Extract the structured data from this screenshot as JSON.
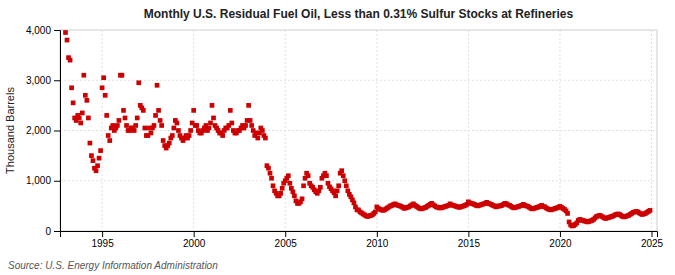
{
  "chart_data": {
    "type": "scatter",
    "title": "Monthly U.S. Residual Fuel Oil, Less than 0.31% Sulfur Stocks at Refineries",
    "ylabel": "Thousand Barrels",
    "annotations": [
      "Source: U.S. Energy Information Administration"
    ],
    "color": "#cc0000",
    "marker": "square",
    "grid": true,
    "xlim": [
      1992.7,
      2025.3
    ],
    "xticks": [
      1995,
      2000,
      2005,
      2010,
      2015,
      2020,
      2025
    ],
    "ylim": [
      0,
      4000
    ],
    "yticks": [
      0,
      {
        "value": 1000,
        "label": "1,000"
      },
      {
        "value": 2000,
        "label": "2,000"
      },
      {
        "value": 3000,
        "label": "3,000"
      },
      {
        "value": 4000,
        "label": "4,000"
      }
    ],
    "x": [
      1993.0,
      1993.083,
      1993.167,
      1993.25,
      1993.333,
      1993.417,
      1993.5,
      1993.583,
      1993.667,
      1993.75,
      1993.833,
      1993.917,
      1994.0,
      1994.083,
      1994.167,
      1994.25,
      1994.333,
      1994.417,
      1994.5,
      1994.583,
      1994.667,
      1994.75,
      1994.833,
      1994.917,
      1995.0,
      1995.083,
      1995.167,
      1995.25,
      1995.333,
      1995.417,
      1995.5,
      1995.583,
      1995.667,
      1995.75,
      1995.833,
      1995.917,
      1996.0,
      1996.083,
      1996.167,
      1996.25,
      1996.333,
      1996.417,
      1996.5,
      1996.583,
      1996.667,
      1996.75,
      1996.833,
      1996.917,
      1997.0,
      1997.083,
      1997.167,
      1997.25,
      1997.333,
      1997.417,
      1997.5,
      1997.583,
      1997.667,
      1997.75,
      1997.833,
      1997.917,
      1998.0,
      1998.083,
      1998.167,
      1998.25,
      1998.333,
      1998.417,
      1998.5,
      1998.583,
      1998.667,
      1998.75,
      1998.833,
      1998.917,
      1999.0,
      1999.083,
      1999.167,
      1999.25,
      1999.333,
      1999.417,
      1999.5,
      1999.583,
      1999.667,
      1999.75,
      1999.833,
      1999.917,
      2000.0,
      2000.083,
      2000.167,
      2000.25,
      2000.333,
      2000.417,
      2000.5,
      2000.583,
      2000.667,
      2000.75,
      2000.833,
      2000.917,
      2001.0,
      2001.083,
      2001.167,
      2001.25,
      2001.333,
      2001.417,
      2001.5,
      2001.583,
      2001.667,
      2001.75,
      2001.833,
      2001.917,
      2002.0,
      2002.083,
      2002.167,
      2002.25,
      2002.333,
      2002.417,
      2002.5,
      2002.583,
      2002.667,
      2002.75,
      2002.833,
      2002.917,
      2003.0,
      2003.083,
      2003.167,
      2003.25,
      2003.333,
      2003.417,
      2003.5,
      2003.583,
      2003.667,
      2003.75,
      2003.833,
      2003.917,
      2004.0,
      2004.083,
      2004.167,
      2004.25,
      2004.333,
      2004.417,
      2004.5,
      2004.583,
      2004.667,
      2004.75,
      2004.833,
      2004.917,
      2005.0,
      2005.083,
      2005.167,
      2005.25,
      2005.333,
      2005.417,
      2005.5,
      2005.583,
      2005.667,
      2005.75,
      2005.833,
      2005.917,
      2006.0,
      2006.083,
      2006.167,
      2006.25,
      2006.333,
      2006.417,
      2006.5,
      2006.583,
      2006.667,
      2006.75,
      2006.833,
      2006.917,
      2007.0,
      2007.083,
      2007.167,
      2007.25,
      2007.333,
      2007.417,
      2007.5,
      2007.583,
      2007.667,
      2007.75,
      2007.833,
      2007.917,
      2008.0,
      2008.083,
      2008.167,
      2008.25,
      2008.333,
      2008.417,
      2008.5,
      2008.583,
      2008.667,
      2008.75,
      2008.833,
      2008.917,
      2009.0,
      2009.083,
      2009.167,
      2009.25,
      2009.333,
      2009.417,
      2009.5,
      2009.583,
      2009.667,
      2009.75,
      2009.833,
      2009.917,
      2010.0,
      2010.083,
      2010.167,
      2010.25,
      2010.333,
      2010.417,
      2010.5,
      2010.583,
      2010.667,
      2010.75,
      2010.833,
      2010.917,
      2011.0,
      2011.083,
      2011.167,
      2011.25,
      2011.333,
      2011.417,
      2011.5,
      2011.583,
      2011.667,
      2011.75,
      2011.833,
      2011.917,
      2012.0,
      2012.083,
      2012.167,
      2012.25,
      2012.333,
      2012.417,
      2012.5,
      2012.583,
      2012.667,
      2012.75,
      2012.833,
      2012.917,
      2013.0,
      2013.083,
      2013.167,
      2013.25,
      2013.333,
      2013.417,
      2013.5,
      2013.583,
      2013.667,
      2013.75,
      2013.833,
      2013.917,
      2014.0,
      2014.083,
      2014.167,
      2014.25,
      2014.333,
      2014.417,
      2014.5,
      2014.583,
      2014.667,
      2014.75,
      2014.833,
      2014.917,
      2015.0,
      2015.083,
      2015.167,
      2015.25,
      2015.333,
      2015.417,
      2015.5,
      2015.583,
      2015.667,
      2015.75,
      2015.833,
      2015.917,
      2016.0,
      2016.083,
      2016.167,
      2016.25,
      2016.333,
      2016.417,
      2016.5,
      2016.583,
      2016.667,
      2016.75,
      2016.833,
      2016.917,
      2017.0,
      2017.083,
      2017.167,
      2017.25,
      2017.333,
      2017.417,
      2017.5,
      2017.583,
      2017.667,
      2017.75,
      2017.833,
      2017.917,
      2018.0,
      2018.083,
      2018.167,
      2018.25,
      2018.333,
      2018.417,
      2018.5,
      2018.583,
      2018.667,
      2018.75,
      2018.833,
      2018.917,
      2019.0,
      2019.083,
      2019.167,
      2019.25,
      2019.333,
      2019.417,
      2019.5,
      2019.583,
      2019.667,
      2019.75,
      2019.833,
      2019.917,
      2020.0,
      2020.083,
      2020.167,
      2020.25,
      2020.333,
      2020.417,
      2020.5,
      2020.583,
      2020.667,
      2020.75,
      2020.833,
      2020.917,
      2021.0,
      2021.083,
      2021.167,
      2021.25,
      2021.333,
      2021.417,
      2021.5,
      2021.583,
      2021.667,
      2021.75,
      2021.833,
      2021.917,
      2022.0,
      2022.083,
      2022.167,
      2022.25,
      2022.333,
      2022.417,
      2022.5,
      2022.583,
      2022.667,
      2022.75,
      2022.833,
      2022.917,
      2023.0,
      2023.083,
      2023.167,
      2023.25,
      2023.333,
      2023.417,
      2023.5,
      2023.583,
      2023.667,
      2023.75,
      2023.833,
      2023.917,
      2024.0,
      2024.083,
      2024.167,
      2024.25,
      2024.333,
      2024.417,
      2024.5,
      2024.583,
      2024.667,
      2024.75,
      2024.833,
      2024.917
    ],
    "values": [
      3950,
      3800,
      3450,
      3400,
      2850,
      2550,
      2250,
      2200,
      2300,
      2250,
      2150,
      2350,
      3100,
      2700,
      2600,
      2250,
      1750,
      1500,
      1400,
      1250,
      1200,
      1300,
      1450,
      1600,
      2850,
      3050,
      2700,
      2300,
      1900,
      1800,
      2050,
      2100,
      2000,
      2050,
      2100,
      2200,
      3100,
      3100,
      2400,
      2250,
      2100,
      2000,
      2000,
      2050,
      2050,
      2000,
      2100,
      2250,
      2950,
      2500,
      2450,
      2400,
      2050,
      1900,
      1900,
      2050,
      1950,
      2050,
      2100,
      2300,
      2900,
      2400,
      2200,
      2100,
      1800,
      1700,
      1650,
      1700,
      1750,
      1850,
      1900,
      2050,
      2200,
      2150,
      2000,
      1900,
      1850,
      1800,
      1850,
      1900,
      1850,
      1900,
      2000,
      2150,
      2400,
      2100,
      2100,
      2000,
      1950,
      1950,
      2000,
      2050,
      2100,
      2000,
      2050,
      2150,
      2500,
      2250,
      2100,
      2050,
      2000,
      1950,
      1950,
      1900,
      2000,
      2050,
      2050,
      2100,
      2400,
      2150,
      2000,
      1950,
      1950,
      2000,
      2000,
      2050,
      2100,
      2050,
      2100,
      2200,
      2500,
      2200,
      2100,
      2000,
      1900,
      1950,
      1850,
      1950,
      2050,
      2000,
      1900,
      1850,
      1300,
      1250,
      1150,
      1050,
      900,
      800,
      750,
      700,
      700,
      750,
      850,
      950,
      1000,
      1050,
      1100,
      950,
      850,
      780,
      700,
      600,
      550,
      550,
      580,
      640,
      900,
      1050,
      1150,
      1100,
      950,
      900,
      870,
      820,
      780,
      750,
      800,
      870,
      1050,
      1100,
      1150,
      1100,
      950,
      880,
      840,
      800,
      760,
      700,
      800,
      900,
      1150,
      1200,
      1100,
      1000,
      900,
      800,
      730,
      680,
      620,
      560,
      480,
      420,
      420,
      380,
      360,
      340,
      320,
      300,
      290,
      300,
      310,
      320,
      350,
      380,
      480,
      450,
      430,
      420,
      410,
      420,
      440,
      460,
      480,
      500,
      510,
      530,
      540,
      520,
      510,
      500,
      490,
      470,
      450,
      460,
      470,
      480,
      500,
      520,
      540,
      510,
      490,
      470,
      450,
      440,
      450,
      460,
      470,
      490,
      510,
      530,
      550,
      520,
      500,
      480,
      470,
      460,
      460,
      470,
      480,
      490,
      500,
      510,
      540,
      520,
      510,
      500,
      490,
      480,
      470,
      480,
      490,
      500,
      510,
      530,
      580,
      560,
      550,
      540,
      530,
      510,
      500,
      510,
      520,
      530,
      540,
      550,
      570,
      550,
      540,
      530,
      510,
      500,
      480,
      490,
      500,
      500,
      510,
      530,
      550,
      540,
      520,
      510,
      490,
      470,
      460,
      470,
      480,
      490,
      500,
      510,
      530,
      510,
      500,
      490,
      470,
      450,
      440,
      450,
      460,
      470,
      480,
      490,
      510,
      490,
      480,
      460,
      440,
      430,
      420,
      430,
      440,
      450,
      460,
      470,
      490,
      470,
      450,
      430,
      400,
      350,
      180,
      120,
      100,
      110,
      130,
      160,
      210,
      230,
      220,
      210,
      200,
      190,
      180,
      190,
      200,
      210,
      230,
      260,
      290,
      300,
      310,
      300,
      280,
      260,
      250,
      260,
      270,
      280,
      290,
      300,
      320,
      330,
      340,
      330,
      310,
      290,
      280,
      290,
      300,
      310,
      330,
      350,
      370,
      380,
      390,
      380,
      360,
      340,
      330,
      340,
      350,
      370,
      390,
      410
    ]
  }
}
